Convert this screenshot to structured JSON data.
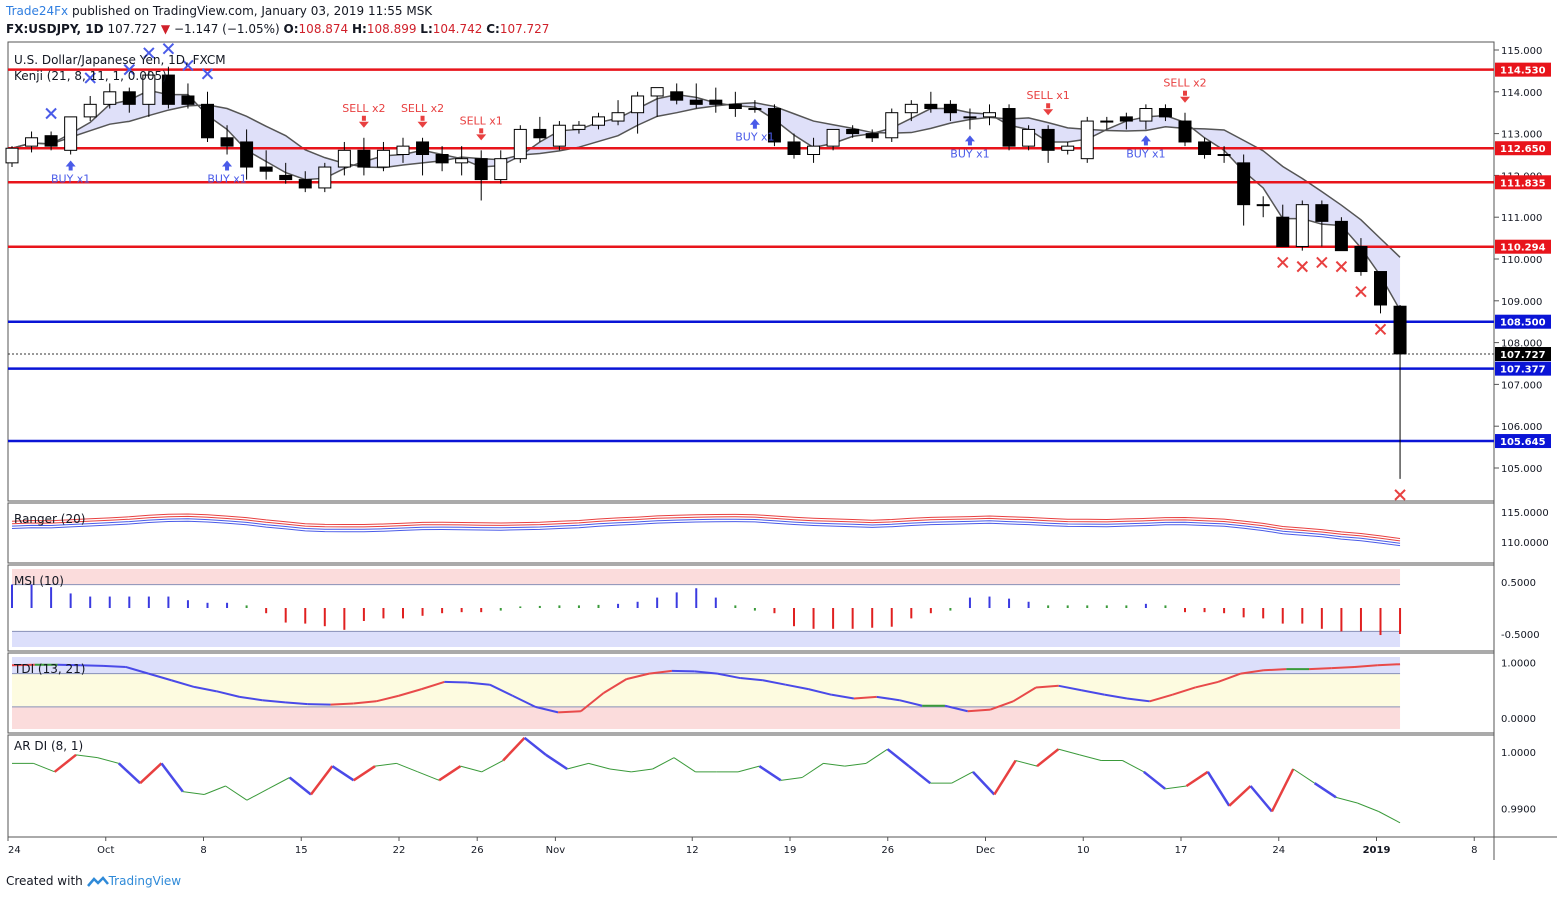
{
  "header": {
    "brand": "Trade24Fx",
    "published": "published on TradingView.com, January 03, 2019 11:55 MSK",
    "symbol": "FX:USDJPY, 1D",
    "last": "107.727",
    "change": "−1.147 (−1.05%)",
    "o_label": "O:",
    "o": "108.874",
    "h_label": "H:",
    "h": "108.899",
    "l_label": "L:",
    "l": "104.742",
    "c_label": "C:",
    "c": "107.727"
  },
  "footer": {
    "created": "Created with",
    "tv": "TradingView"
  },
  "colors": {
    "up": "#ffffff",
    "down": "#000000",
    "red_level": "#e8141b",
    "blue_level": "#0a14d6",
    "buy": "#4a5be8",
    "sell": "#e84040",
    "cross_up": "#4a5be8",
    "cross_dn": "#e84040"
  },
  "chart_data": [
    {
      "type": "candlestick",
      "title": "U.S. Dollar/Japanese Yen, 1D, FXCM",
      "indicator": "Kenji (21, 8, 11, 1, 0.005)",
      "ylim": [
        104.5,
        115.1
      ],
      "y_ticks": [
        "115.000",
        "114.000",
        "113.000",
        "112.000",
        "111.000",
        "110.000",
        "109.000",
        "108.000",
        "107.000",
        "106.000",
        "105.000"
      ],
      "x_ticks": [
        "24",
        "Oct",
        "8",
        "15",
        "22",
        "26",
        "Nov",
        "12",
        "19",
        "26",
        "Dec",
        "10",
        "17",
        "24",
        "2019",
        "8"
      ],
      "levels": [
        {
          "value": 114.53,
          "label": "114.530",
          "color": "red"
        },
        {
          "value": 112.65,
          "label": "112.650",
          "color": "red"
        },
        {
          "value": 111.835,
          "label": "111.835",
          "color": "red"
        },
        {
          "value": 110.294,
          "label": "110.294",
          "color": "red"
        },
        {
          "value": 108.5,
          "label": "108.500",
          "color": "blue"
        },
        {
          "value": 107.377,
          "label": "107.377",
          "color": "blue"
        },
        {
          "value": 105.645,
          "label": "105.645",
          "color": "blue"
        }
      ],
      "last_price": {
        "value": 107.727,
        "label": "107.727"
      },
      "candles": [
        [
          112.3,
          112.7,
          112.2,
          112.65
        ],
        [
          112.7,
          113.05,
          112.55,
          112.9
        ],
        [
          112.95,
          113.05,
          112.6,
          112.7
        ],
        [
          112.6,
          113.4,
          112.5,
          113.4
        ],
        [
          113.4,
          113.9,
          113.3,
          113.7
        ],
        [
          113.7,
          114.2,
          113.6,
          114.0
        ],
        [
          114.0,
          114.1,
          113.5,
          113.7
        ],
        [
          113.7,
          114.5,
          113.4,
          114.4
        ],
        [
          114.4,
          114.6,
          113.6,
          113.7
        ],
        [
          113.9,
          114.2,
          113.6,
          113.7
        ],
        [
          113.7,
          114.0,
          112.8,
          112.9
        ],
        [
          112.9,
          113.2,
          112.5,
          112.7
        ],
        [
          112.8,
          113.1,
          111.9,
          112.2
        ],
        [
          112.2,
          112.6,
          111.9,
          112.1
        ],
        [
          112.0,
          112.3,
          111.8,
          111.9
        ],
        [
          111.9,
          112.1,
          111.6,
          111.7
        ],
        [
          111.7,
          112.3,
          111.6,
          112.2
        ],
        [
          112.2,
          112.8,
          112.0,
          112.6
        ],
        [
          112.6,
          112.9,
          112.0,
          112.2
        ],
        [
          112.2,
          112.8,
          112.1,
          112.6
        ],
        [
          112.5,
          112.9,
          112.3,
          112.7
        ],
        [
          112.8,
          112.9,
          112.0,
          112.5
        ],
        [
          112.5,
          112.7,
          112.1,
          112.3
        ],
        [
          112.3,
          112.7,
          112.0,
          112.4
        ],
        [
          112.4,
          112.6,
          111.4,
          111.9
        ],
        [
          111.9,
          112.6,
          111.8,
          112.4
        ],
        [
          112.4,
          113.2,
          112.3,
          113.1
        ],
        [
          113.1,
          113.4,
          112.8,
          112.9
        ],
        [
          112.7,
          113.3,
          112.6,
          113.2
        ],
        [
          113.1,
          113.3,
          113.0,
          113.2
        ],
        [
          113.2,
          113.5,
          113.1,
          113.4
        ],
        [
          113.3,
          113.8,
          113.2,
          113.5
        ],
        [
          113.5,
          114.0,
          113.0,
          113.9
        ],
        [
          113.9,
          114.1,
          113.4,
          114.1
        ],
        [
          114.0,
          114.2,
          113.7,
          113.8
        ],
        [
          113.8,
          114.2,
          113.6,
          113.7
        ],
        [
          113.8,
          114.1,
          113.5,
          113.7
        ],
        [
          113.7,
          114.0,
          113.4,
          113.6
        ],
        [
          113.6,
          113.8,
          113.5,
          113.6
        ],
        [
          113.6,
          113.7,
          112.7,
          112.8
        ],
        [
          112.8,
          113.0,
          112.4,
          112.5
        ],
        [
          112.5,
          112.9,
          112.3,
          112.7
        ],
        [
          112.7,
          113.1,
          112.6,
          113.1
        ],
        [
          113.1,
          113.2,
          112.9,
          113.0
        ],
        [
          113.0,
          113.1,
          112.8,
          112.9
        ],
        [
          112.9,
          113.6,
          112.8,
          113.5
        ],
        [
          113.5,
          113.8,
          113.3,
          113.7
        ],
        [
          113.7,
          114.0,
          113.5,
          113.6
        ],
        [
          113.7,
          113.8,
          113.3,
          113.5
        ],
        [
          113.4,
          113.6,
          113.1,
          113.4
        ],
        [
          113.4,
          113.7,
          113.2,
          113.5
        ],
        [
          113.6,
          113.7,
          112.6,
          112.7
        ],
        [
          112.7,
          113.2,
          112.6,
          113.1
        ],
        [
          113.1,
          113.2,
          112.3,
          112.6
        ],
        [
          112.6,
          112.8,
          112.5,
          112.7
        ],
        [
          112.4,
          113.4,
          112.3,
          113.3
        ],
        [
          113.3,
          113.4,
          113.1,
          113.3
        ],
        [
          113.4,
          113.5,
          113.1,
          113.3
        ],
        [
          113.3,
          113.7,
          113.1,
          113.6
        ],
        [
          113.6,
          113.7,
          113.3,
          113.4
        ],
        [
          113.3,
          113.5,
          112.7,
          112.8
        ],
        [
          112.8,
          112.9,
          112.4,
          112.5
        ],
        [
          112.5,
          112.7,
          112.3,
          112.5
        ],
        [
          112.3,
          112.5,
          110.8,
          111.3
        ],
        [
          111.3,
          111.5,
          111.0,
          111.3
        ],
        [
          111.0,
          111.3,
          110.3,
          110.3
        ],
        [
          110.3,
          111.4,
          110.2,
          111.3
        ],
        [
          111.3,
          111.4,
          110.3,
          110.9
        ],
        [
          110.9,
          111.0,
          110.2,
          110.2
        ],
        [
          110.3,
          110.5,
          109.6,
          109.7
        ],
        [
          109.7,
          109.7,
          108.7,
          108.9
        ],
        [
          108.87,
          108.9,
          104.74,
          107.73
        ]
      ],
      "signals": [
        {
          "text": "BUY x1",
          "kind": "buy"
        },
        {
          "text": "BUY x1",
          "kind": "buy"
        },
        {
          "text": "SELL x2",
          "kind": "sell"
        },
        {
          "text": "SELL x2",
          "kind": "sell"
        },
        {
          "text": "SELL x1",
          "kind": "sell"
        },
        {
          "text": "BUY x1",
          "kind": "buy"
        },
        {
          "text": "BUY x1",
          "kind": "buy"
        },
        {
          "text": "SELL x1",
          "kind": "sell"
        },
        {
          "text": "BUY x1",
          "kind": "buy"
        },
        {
          "text": "SELL x2",
          "kind": "sell"
        }
      ]
    },
    {
      "type": "line",
      "title": "Ranger (20)",
      "y_ticks": [
        "115.0000",
        "110.0000"
      ],
      "ylim": [
        106.5,
        116.5
      ]
    },
    {
      "type": "bar",
      "title": "MSI (10)",
      "y_ticks": [
        "0.5000",
        "-0.5000"
      ],
      "ylim": [
        -0.75,
        0.75
      ],
      "values": [
        0.45,
        0.45,
        0.4,
        0.28,
        0.22,
        0.22,
        0.22,
        0.22,
        0.22,
        0.15,
        0.1,
        0.1,
        0.05,
        -0.1,
        -0.28,
        -0.3,
        -0.35,
        -0.42,
        -0.25,
        -0.2,
        -0.2,
        -0.15,
        -0.1,
        -0.08,
        -0.08,
        -0.05,
        0.03,
        0.04,
        0.05,
        0.05,
        0.06,
        0.08,
        0.12,
        0.2,
        0.3,
        0.38,
        0.2,
        0.05,
        -0.05,
        -0.1,
        -0.35,
        -0.4,
        -0.4,
        -0.4,
        -0.38,
        -0.36,
        -0.2,
        -0.1,
        -0.05,
        0.2,
        0.22,
        0.18,
        0.12,
        0.05,
        0.05,
        0.05,
        0.05,
        0.05,
        0.08,
        0.05,
        -0.08,
        -0.08,
        -0.1,
        -0.18,
        -0.2,
        -0.3,
        -0.3,
        -0.4,
        -0.45,
        -0.45,
        -0.52,
        -0.5
      ]
    },
    {
      "type": "line",
      "title": "TDI (13, 21)",
      "y_ticks": [
        "1.0000",
        "0.0000"
      ],
      "ylim": [
        -0.2,
        1.1
      ],
      "values": [
        0.95,
        0.96,
        0.96,
        0.95,
        0.94,
        0.92,
        0.8,
        0.68,
        0.56,
        0.48,
        0.38,
        0.32,
        0.28,
        0.25,
        0.24,
        0.26,
        0.3,
        0.4,
        0.52,
        0.65,
        0.64,
        0.6,
        0.4,
        0.2,
        0.1,
        0.12,
        0.45,
        0.7,
        0.8,
        0.85,
        0.84,
        0.8,
        0.72,
        0.68,
        0.6,
        0.52,
        0.42,
        0.35,
        0.38,
        0.32,
        0.22,
        0.22,
        0.12,
        0.15,
        0.3,
        0.55,
        0.58,
        0.5,
        0.42,
        0.35,
        0.3,
        0.42,
        0.55,
        0.65,
        0.8,
        0.86,
        0.88,
        0.88,
        0.9,
        0.92,
        0.95,
        0.97
      ]
    },
    {
      "type": "line",
      "title": "AR DI (8, 1)",
      "y_ticks": [
        "1.0000",
        "0.9900"
      ],
      "ylim": [
        0.985,
        1.003
      ],
      "values": [
        0.998,
        0.998,
        0.9965,
        0.9995,
        0.999,
        0.998,
        0.9945,
        0.998,
        0.993,
        0.9925,
        0.994,
        0.9915,
        0.9935,
        0.9955,
        0.9925,
        0.9975,
        0.995,
        0.9975,
        0.998,
        0.9965,
        0.995,
        0.9975,
        0.9965,
        0.9985,
        1.0025,
        0.9995,
        0.997,
        0.998,
        0.997,
        0.9965,
        0.997,
        0.999,
        0.9965,
        0.9965,
        0.9965,
        0.9975,
        0.995,
        0.9955,
        0.998,
        0.9975,
        0.998,
        1.0005,
        0.9975,
        0.9945,
        0.9945,
        0.9965,
        0.9925,
        0.9985,
        0.9975,
        1.0005,
        0.9995,
        0.9985,
        0.9985,
        0.9965,
        0.9935,
        0.994,
        0.9965,
        0.9905,
        0.994,
        0.9895,
        0.997,
        0.9945,
        0.992,
        0.991,
        0.9895,
        0.9875
      ]
    }
  ]
}
